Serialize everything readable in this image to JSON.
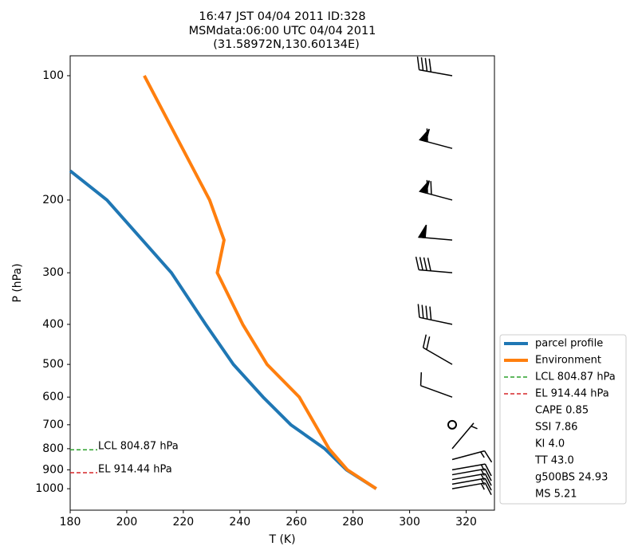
{
  "chart_data": {
    "type": "line",
    "title": [
      "16:47 JST 04/04 2011  ID:328",
      "MSMdata:06:00 UTC 04/04 2011",
      "(31.58972N,130.60134E)"
    ],
    "x_label": "T (K)",
    "y_label": "P (hPa)",
    "xlim": [
      180,
      330
    ],
    "ylim": [
      1127,
      89.5
    ],
    "y_scale": "log",
    "xticks": [
      180,
      200,
      220,
      240,
      260,
      280,
      300,
      320
    ],
    "yticks": [
      100,
      200,
      300,
      400,
      500,
      600,
      700,
      800,
      900,
      1000
    ],
    "series": [
      {
        "name": "parcel profile",
        "color": "#1f77b4",
        "pressure": [
          1000,
          900,
          800,
          700,
          600,
          500,
          400,
          300,
          200,
          170
        ],
        "temperature": [
          288.2,
          277.7,
          270,
          258,
          248.2,
          237.7,
          227.9,
          215.8,
          193,
          180
        ]
      },
      {
        "name": "Environment",
        "color": "#ff7f0e",
        "pressure": [
          1000,
          900,
          800,
          600,
          500,
          400,
          300,
          250,
          200,
          100
        ],
        "temperature": [
          288.2,
          278,
          271.5,
          261,
          249.6,
          241,
          232,
          234.4,
          229.3,
          206.2
        ]
      }
    ],
    "levels": [
      {
        "name": "LCL 804.87 hPa",
        "value": 804.87,
        "color": "#2ca02c"
      },
      {
        "name": "EL 914.44 hPa",
        "value": 914.44,
        "color": "#d62728"
      }
    ],
    "indices": [
      "CAPE 0.85",
      "SSI 7.86",
      "KI 4.0",
      "TT 43.0",
      "g500BS 24.93",
      "MS 5.21"
    ],
    "wind_barbs": {
      "pressure": [
        100,
        150,
        200,
        250,
        300,
        400,
        500,
        600,
        700,
        800,
        850,
        900,
        925,
        950,
        975,
        1000
      ],
      "speed": [
        40,
        60,
        70,
        50,
        40,
        40,
        20,
        10,
        0,
        5,
        15,
        15,
        15,
        15,
        15,
        15
      ],
      "direction": [
        280,
        285,
        285,
        275,
        275,
        282,
        300,
        290,
        0,
        40,
        75,
        80,
        80,
        80,
        80,
        80
      ]
    }
  }
}
